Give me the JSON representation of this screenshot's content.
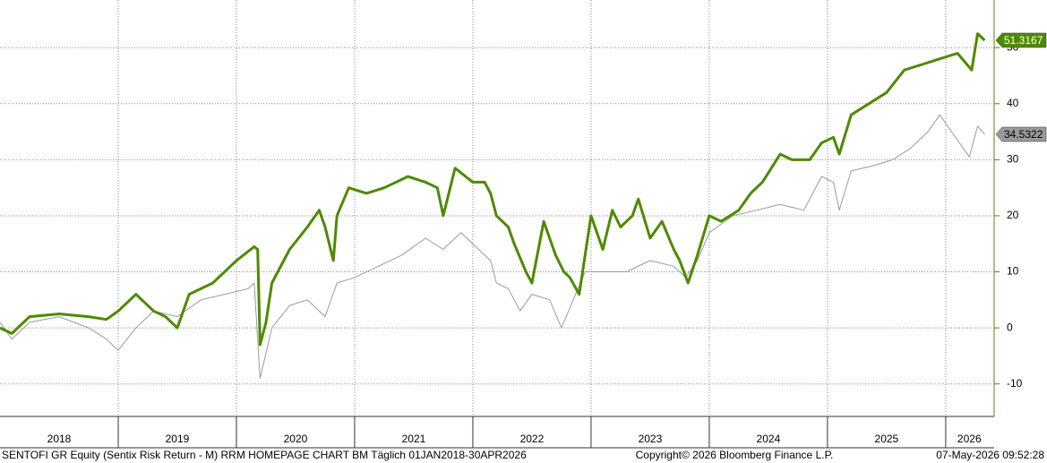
{
  "chart_data": {
    "type": "line",
    "xlim": [
      2018,
      2026.41
    ],
    "xticks": [
      {
        "value": 2018.5,
        "label": "2018"
      },
      {
        "value": 2019.5,
        "label": "2019"
      },
      {
        "value": 2020.5,
        "label": "2020"
      },
      {
        "value": 2021.5,
        "label": "2021"
      },
      {
        "value": 2022.5,
        "label": "2022"
      },
      {
        "value": 2023.5,
        "label": "2023"
      },
      {
        "value": 2024.5,
        "label": "2024"
      },
      {
        "value": 2025.5,
        "label": "2025"
      },
      {
        "value": 2026.2,
        "label": "2026"
      }
    ],
    "xgrid": [
      2019,
      2020,
      2021,
      2022,
      2023,
      2024,
      2025,
      2026
    ],
    "ylim": [
      -15.8,
      58.5
    ],
    "yticks": [
      -10,
      0,
      10,
      20,
      30,
      40,
      50
    ],
    "grid": true,
    "series": [
      {
        "color": "#4e8a00",
        "x": [
          2018.0,
          2018.1,
          2018.25,
          2018.5,
          2018.75,
          2018.9,
          2019.0,
          2019.15,
          2019.3,
          2019.4,
          2019.5,
          2019.6,
          2019.8,
          2020.0,
          2020.15,
          2020.18,
          2020.2,
          2020.25,
          2020.3,
          2020.45,
          2020.6,
          2020.7,
          2020.75,
          2020.82,
          2020.85,
          2020.95,
          2021.1,
          2021.25,
          2021.45,
          2021.6,
          2021.7,
          2021.75,
          2021.85,
          2022.0,
          2022.1,
          2022.15,
          2022.2,
          2022.3,
          2022.35,
          2022.45,
          2022.5,
          2022.6,
          2022.7,
          2022.77,
          2022.82,
          2022.9,
          2023.0,
          2023.1,
          2023.18,
          2023.25,
          2023.35,
          2023.4,
          2023.5,
          2023.6,
          2023.7,
          2023.75,
          2023.82,
          2023.9,
          2024.0,
          2024.1,
          2024.25,
          2024.35,
          2024.45,
          2024.6,
          2024.7,
          2024.85,
          2024.95,
          2025.05,
          2025.1,
          2025.2,
          2025.35,
          2025.5,
          2025.65,
          2025.8,
          2025.95,
          2026.1,
          2026.22,
          2026.27,
          2026.33
        ],
        "values": [
          0,
          -1,
          2,
          2.5,
          2,
          1.5,
          3,
          6,
          3,
          2,
          0,
          6,
          8,
          12,
          14.5,
          14,
          -3,
          1,
          8,
          14,
          18,
          21,
          18,
          12,
          20,
          25,
          24,
          25,
          27,
          26,
          25,
          20,
          28.5,
          26,
          26,
          24,
          20,
          18,
          15,
          10,
          8,
          19,
          13,
          10,
          9,
          6,
          20,
          14,
          21,
          18,
          20,
          23,
          16,
          19,
          14,
          12,
          8,
          13,
          20,
          19,
          21,
          24,
          26,
          31,
          30,
          30,
          33,
          34,
          31,
          38,
          40,
          42,
          46,
          47,
          48,
          49,
          46,
          52.5,
          51.3167
        ]
      },
      {
        "color": "#9a9a9a",
        "x": [
          2018.0,
          2018.1,
          2018.25,
          2018.5,
          2018.75,
          2018.9,
          2019.0,
          2019.15,
          2019.3,
          2019.5,
          2019.7,
          2019.9,
          2020.1,
          2020.15,
          2020.2,
          2020.3,
          2020.45,
          2020.6,
          2020.75,
          2020.85,
          2021.0,
          2021.2,
          2021.4,
          2021.6,
          2021.75,
          2021.9,
          2022.0,
          2022.15,
          2022.2,
          2022.3,
          2022.4,
          2022.5,
          2022.65,
          2022.75,
          2022.85,
          2022.95,
          2023.1,
          2023.3,
          2023.5,
          2023.7,
          2023.8,
          2023.9,
          2024.0,
          2024.2,
          2024.4,
          2024.6,
          2024.8,
          2024.95,
          2025.05,
          2025.1,
          2025.2,
          2025.4,
          2025.55,
          2025.7,
          2025.85,
          2025.95,
          2026.05,
          2026.2,
          2026.27,
          2026.33
        ],
        "values": [
          1,
          -2,
          1,
          2,
          0,
          -2,
          -4,
          0,
          3,
          2,
          5,
          6,
          7,
          8,
          -9,
          0,
          4,
          5,
          2,
          8,
          9,
          11,
          13,
          16,
          14,
          17,
          15,
          12,
          8,
          7,
          3,
          6,
          5,
          0,
          5,
          10,
          10,
          10,
          12,
          11,
          9,
          12,
          17,
          20,
          21,
          22,
          21,
          27,
          26,
          21,
          28,
          29,
          30,
          32,
          35,
          38,
          35,
          30.5,
          36,
          34.5322
        ]
      }
    ]
  },
  "footer": {
    "left": "SENTOFI GR Equity (Sentix Risk Return - M) RRM HOMEPAGE CHART BM Täglich 01JAN2018-30APR2026",
    "center": "Copyright© 2026 Bloomberg Finance L.P.",
    "right": "07-May-2026 09:52:28"
  }
}
